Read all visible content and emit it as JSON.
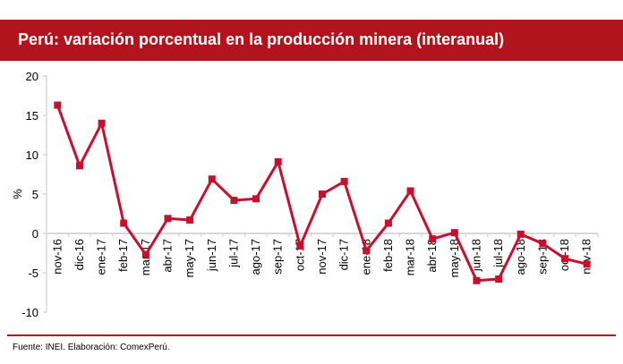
{
  "title": "Perú: variación porcentual en la producción minera (interanual)",
  "source": "Fuente: INEI. Elaboración: ComexPerú.",
  "colors": {
    "accent": "#b2141e",
    "line": "#c8102e",
    "axis": "#d9d9d9"
  },
  "chart_data": {
    "type": "line",
    "title": "Perú: variación porcentual en la producción minera (interanual)",
    "xlabel": "",
    "ylabel": "%",
    "ylim": [
      -10,
      20
    ],
    "yticks": [
      -10,
      -5,
      0,
      5,
      10,
      15,
      20
    ],
    "grid": false,
    "categories": [
      "nov-16",
      "dic-16",
      "ene-17",
      "feb-17",
      "mar-17",
      "abr-17",
      "may-17",
      "jun-17",
      "jul-17",
      "ago-17",
      "sep-17",
      "oct-17",
      "nov-17",
      "dic-17",
      "ene-18",
      "feb-18",
      "mar-18",
      "abr-18",
      "may-18",
      "jun-18",
      "jul-18",
      "ago-18",
      "sep-18",
      "oct-18",
      "nov-18"
    ],
    "series": [
      {
        "name": "Producción minera",
        "values": [
          16.3,
          8.6,
          14.0,
          1.3,
          -2.7,
          1.9,
          1.7,
          6.9,
          4.2,
          4.4,
          9.1,
          -1.6,
          5.0,
          6.6,
          -2.2,
          1.3,
          5.4,
          -0.7,
          0.1,
          -6.0,
          -5.8,
          -0.1,
          -1.3,
          -3.2,
          -3.9
        ]
      }
    ]
  }
}
